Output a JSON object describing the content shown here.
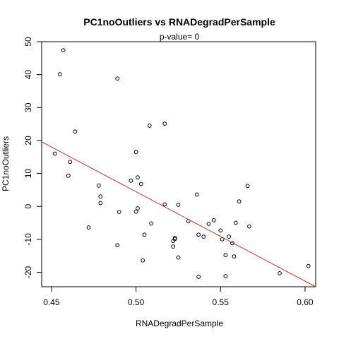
{
  "chart_data": {
    "type": "scatter",
    "title": "PC1noOutliers  vs  RNADegradPerSample",
    "subtitle": "p-value= 0",
    "xlabel": "RNADegradPerSample",
    "ylabel": "PC1noOutliers",
    "xlim": [
      0.4442,
      0.6063
    ],
    "ylim": [
      -24.4,
      50
    ],
    "xticks": [
      "0.45",
      "0.50",
      "0.55",
      "0.60"
    ],
    "yticks": [
      "-20",
      "-10",
      "0",
      "10",
      "20",
      "30",
      "40",
      "50"
    ],
    "grid": false,
    "legend": "none",
    "points_color": "#000000",
    "line_color": "#cc3333",
    "trend_line": {
      "x": [
        0.4442,
        0.6063
      ],
      "y": [
        19.6,
        -24.4
      ]
    },
    "points": [
      {
        "x": 0.457,
        "y": 47.4
      },
      {
        "x": 0.455,
        "y": 40.1
      },
      {
        "x": 0.489,
        "y": 38.8
      },
      {
        "x": 0.517,
        "y": 25.1
      },
      {
        "x": 0.508,
        "y": 24.5
      },
      {
        "x": 0.464,
        "y": 22.7
      },
      {
        "x": 0.5,
        "y": 16.5
      },
      {
        "x": 0.452,
        "y": 16.0
      },
      {
        "x": 0.461,
        "y": 13.5
      },
      {
        "x": 0.46,
        "y": 9.3
      },
      {
        "x": 0.501,
        "y": 8.8
      },
      {
        "x": 0.497,
        "y": 7.8
      },
      {
        "x": 0.503,
        "y": 6.8
      },
      {
        "x": 0.478,
        "y": 6.3
      },
      {
        "x": 0.566,
        "y": 6.2
      },
      {
        "x": 0.536,
        "y": 3.6
      },
      {
        "x": 0.479,
        "y": 3.0
      },
      {
        "x": 0.561,
        "y": 1.5
      },
      {
        "x": 0.479,
        "y": 1.0
      },
      {
        "x": 0.517,
        "y": 0.6
      },
      {
        "x": 0.525,
        "y": 0.5
      },
      {
        "x": 0.501,
        "y": -0.6
      },
      {
        "x": 0.5,
        "y": -1.6
      },
      {
        "x": 0.49,
        "y": -1.7
      },
      {
        "x": 0.546,
        "y": -4.2
      },
      {
        "x": 0.531,
        "y": -4.5
      },
      {
        "x": 0.559,
        "y": -5.0
      },
      {
        "x": 0.509,
        "y": -5.2
      },
      {
        "x": 0.543,
        "y": -5.3
      },
      {
        "x": 0.567,
        "y": -6.1
      },
      {
        "x": 0.472,
        "y": -6.4
      },
      {
        "x": 0.55,
        "y": -7.3
      },
      {
        "x": 0.505,
        "y": -8.6
      },
      {
        "x": 0.537,
        "y": -8.6
      },
      {
        "x": 0.54,
        "y": -9.2
      },
      {
        "x": 0.555,
        "y": -9.2
      },
      {
        "x": 0.523,
        "y": -9.6
      },
      {
        "x": 0.523,
        "y": -9.9
      },
      {
        "x": 0.551,
        "y": -10.0
      },
      {
        "x": 0.522,
        "y": -10.5
      },
      {
        "x": 0.557,
        "y": -11.2
      },
      {
        "x": 0.489,
        "y": -11.8
      },
      {
        "x": 0.522,
        "y": -12.2
      },
      {
        "x": 0.553,
        "y": -14.8
      },
      {
        "x": 0.558,
        "y": -15.2
      },
      {
        "x": 0.525,
        "y": -15.5
      },
      {
        "x": 0.504,
        "y": -16.4
      },
      {
        "x": 0.585,
        "y": -20.3
      },
      {
        "x": 0.537,
        "y": -21.4
      },
      {
        "x": 0.553,
        "y": -21.2
      },
      {
        "x": 0.602,
        "y": -18.1
      }
    ]
  }
}
